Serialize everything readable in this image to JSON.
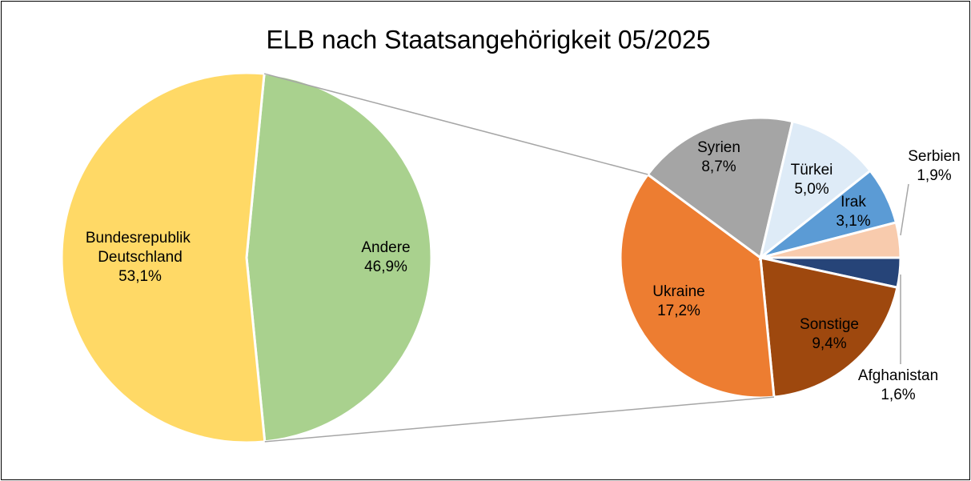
{
  "chart_data": [
    {
      "type": "pie",
      "title": "ELB nach Staatsangehörigkeit 05/2025",
      "categories": [
        "Andere",
        "Bundesrepublik Deutschland"
      ],
      "values": [
        46.9,
        53.1
      ],
      "value_labels": [
        "46,9%",
        "53,1%"
      ],
      "colors": [
        "#a9d18e",
        "#ffd966"
      ]
    },
    {
      "type": "pie",
      "categories": [
        "Afghanistan",
        "Sonstige",
        "Ukraine",
        "Syrien",
        "Türkei",
        "Irak",
        "Serbien"
      ],
      "values": [
        1.6,
        9.4,
        17.2,
        8.7,
        5.0,
        3.1,
        1.9
      ],
      "value_labels": [
        "1,6%",
        "9,4%",
        "17,2%",
        "8,7%",
        "5,0%",
        "3,1%",
        "1,9%"
      ],
      "colors": [
        "#264478",
        "#9e480e",
        "#ed7d31",
        "#a5a5a5",
        "#deebf7",
        "#5b9bd5",
        "#f8cbad"
      ]
    }
  ]
}
